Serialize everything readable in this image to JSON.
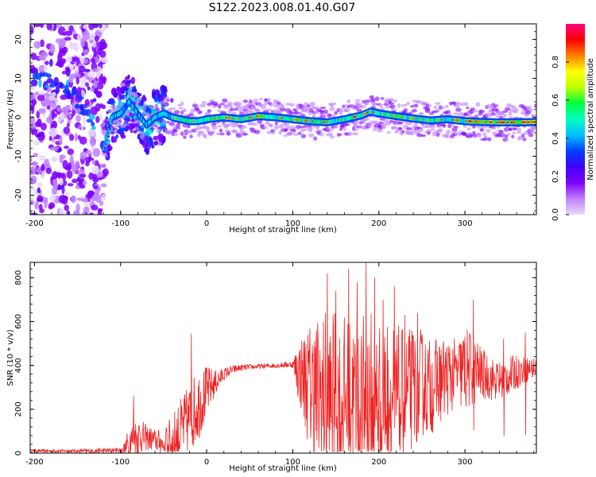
{
  "title": "S122.2023.008.01.40.G07",
  "colors": {
    "snr_line": "#ee2222",
    "background": "#ffffff",
    "axis": "#000000",
    "colormap": [
      "#e8d8ff",
      "#c080ff",
      "#8000ff",
      "#4000ff",
      "#0040ff",
      "#00c0ff",
      "#00ffc0",
      "#00ff40",
      "#c0ff00",
      "#ffff00",
      "#ff8000",
      "#ff0000",
      "#ff0080"
    ]
  },
  "chart_data": [
    {
      "type": "heatmap",
      "name": "spectrogram",
      "xlabel": "Height of straight line (km)",
      "ylabel": "Frequency (Hz)",
      "xlim": [
        -205,
        383
      ],
      "ylim": [
        -25,
        24
      ],
      "xticks": [
        -200,
        -100,
        0,
        100,
        200,
        300
      ],
      "yticks": [
        -20,
        -10,
        0,
        10,
        20
      ],
      "colorbar": {
        "label": "Normalized spectral amplitude",
        "range": [
          0,
          1
        ],
        "ticks": [
          "0.0",
          "0.2",
          "0.4",
          "0.6",
          "0.8"
        ]
      },
      "ridge": {
        "x": [
          -200,
          -180,
          -160,
          -140,
          -130,
          -120,
          -110,
          -100,
          -90,
          -80,
          -70,
          -60,
          -50,
          -40,
          -30,
          -20,
          -10,
          0,
          20,
          40,
          60,
          80,
          100,
          120,
          140,
          160,
          180,
          190,
          200,
          220,
          240,
          260,
          280,
          300,
          320,
          340,
          360,
          383
        ],
        "y": [
          10,
          9.5,
          7,
          2,
          -2,
          -8,
          0,
          1,
          4,
          1,
          -2,
          0,
          1,
          0,
          -0.5,
          -1,
          -1,
          -0.5,
          0,
          -0.5,
          0.3,
          0,
          -0.5,
          -1,
          -1.3,
          -0.5,
          0.5,
          1.5,
          1,
          0.3,
          -0.3,
          -0.8,
          -0.5,
          -1,
          -1.2,
          -1.3,
          -1.3,
          -1.2
        ]
      }
    },
    {
      "type": "line",
      "name": "snr",
      "xlabel": "Height of straight line (km)",
      "ylabel": "SNR (10 * v/v)",
      "xlim": [
        -205,
        383
      ],
      "ylim": [
        0,
        870
      ],
      "xticks": [
        -200,
        -100,
        0,
        100,
        200,
        300
      ],
      "yticks": [
        0,
        200,
        400,
        600,
        800
      ],
      "series": [
        {
          "envelope": {
            "x": [
              -205,
              -150,
              -100,
              -95,
              -90,
              -80,
              -70,
              -60,
              -50,
              -40,
              -30,
              -20,
              -10,
              0,
              10,
              20,
              30,
              40,
              60,
              80,
              100,
              105,
              110,
              120,
              130,
              140,
              150,
              160,
              170,
              180,
              190,
              200,
              210,
              220,
              230,
              240,
              250,
              260,
              270,
              280,
              290,
              300,
              310,
              320,
              330,
              340,
              350,
              360,
              370,
              383
            ],
            "base": [
              10,
              10,
              12,
              20,
              50,
              80,
              70,
              60,
              40,
              60,
              100,
              160,
              220,
              280,
              320,
              360,
              380,
              390,
              395,
              400,
              405,
              380,
              360,
              300,
              260,
              250,
              240,
              250,
              240,
              230,
              240,
              250,
              260,
              250,
              260,
              300,
              320,
              300,
              330,
              350,
              360,
              380,
              380,
              360,
              340,
              330,
              350,
              370,
              380,
              390
            ],
            "amp": [
              8,
              8,
              15,
              40,
              80,
              90,
              60,
              50,
              70,
              120,
              150,
              160,
              170,
              120,
              60,
              30,
              20,
              15,
              12,
              12,
              15,
              120,
              180,
              300,
              380,
              420,
              400,
              380,
              380,
              400,
              420,
              400,
              360,
              340,
              300,
              280,
              250,
              220,
              200,
              180,
              160,
              200,
              170,
              120,
              100,
              90,
              90,
              80,
              60,
              50
            ]
          },
          "peaks": [
            {
              "x": -85,
              "y": 260
            },
            {
              "x": -18,
              "y": 545
            },
            {
              "x": 140,
              "y": 820
            },
            {
              "x": 150,
              "y": 740
            },
            {
              "x": 165,
              "y": 840
            },
            {
              "x": 175,
              "y": 780
            },
            {
              "x": 185,
              "y": 868
            },
            {
              "x": 195,
              "y": 800
            },
            {
              "x": 205,
              "y": 700
            },
            {
              "x": 218,
              "y": 760
            },
            {
              "x": 230,
              "y": 630
            },
            {
              "x": 245,
              "y": 640
            },
            {
              "x": 310,
              "y": 700
            },
            {
              "x": 345,
              "y": 520
            },
            {
              "x": 370,
              "y": 550
            }
          ]
        }
      ]
    }
  ]
}
